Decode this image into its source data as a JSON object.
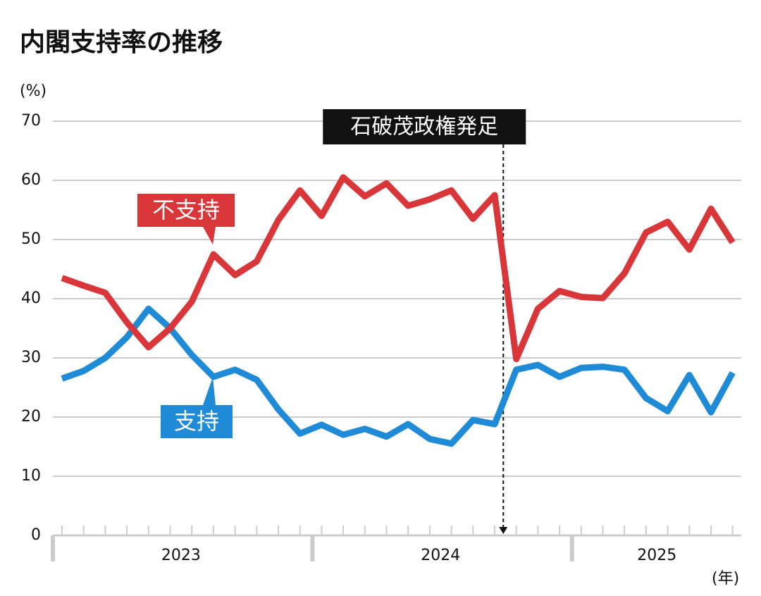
{
  "chart_data": {
    "type": "line",
    "title": "内閣支持率の推移",
    "y_unit_label": "(%)",
    "x_unit_label": "(年)",
    "categories": [
      null,
      null,
      null,
      null,
      null,
      null,
      null,
      null,
      null,
      null,
      null,
      null,
      null,
      null,
      null,
      null,
      null,
      null,
      null,
      null,
      null,
      null,
      null,
      null,
      null,
      null,
      null,
      null,
      null,
      null,
      null,
      null
    ],
    "x_groups": [
      "2023",
      "2024",
      "2025"
    ],
    "series": [
      {
        "name": "支持",
        "color": "#1f8ad6",
        "values": [
          26.5,
          27.8,
          30,
          33.5,
          38.3,
          35,
          30.5,
          26.8,
          28,
          26.3,
          21.3,
          17.2,
          18.7,
          17,
          18,
          16.7,
          18.8,
          16.3,
          15.5,
          19.5,
          18.8,
          28,
          28.8,
          26.8,
          28.3,
          28.5,
          28,
          23.2,
          21,
          27.1,
          20.8,
          27.5
        ]
      },
      {
        "name": "不支持",
        "color": "#d9363a",
        "values": [
          43.5,
          42.2,
          41,
          36,
          31.8,
          35,
          39.5,
          47.5,
          44,
          46.3,
          53.3,
          58.3,
          54,
          60.5,
          57.3,
          59.5,
          55.7,
          56.8,
          58.3,
          53.5,
          57.5,
          29.8,
          38.3,
          41.3,
          40.3,
          40.1,
          44.3,
          51.2,
          53,
          48.3,
          55.2,
          49.5
        ]
      }
    ],
    "ylim": [
      0,
      70
    ],
    "yticks": [
      0,
      10,
      20,
      30,
      40,
      50,
      60,
      70
    ],
    "grid": true,
    "annotations": [
      {
        "text": "石破茂政権発足",
        "at": 20.4
      }
    ]
  }
}
